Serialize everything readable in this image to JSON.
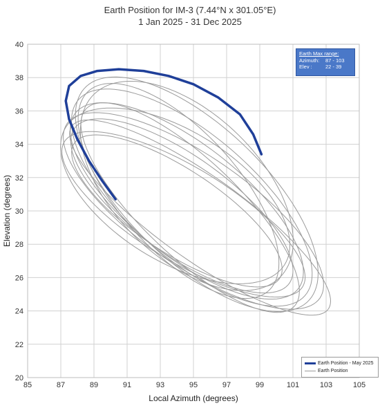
{
  "chart_data": {
    "type": "line",
    "title_line1": "Earth Position for IM-3 (7.44°N x 301.05°E)",
    "title_line2": "1 Jan 2025 - 31 Dec 2025",
    "xlabel": "Local Azimuth (degrees)",
    "ylabel": "Elevation (degrees)",
    "xlim": [
      85,
      105
    ],
    "ylim": [
      20,
      40
    ],
    "xticks": [
      "85",
      "87",
      "89",
      "91",
      "93",
      "95",
      "97",
      "99",
      "101",
      "103",
      "105"
    ],
    "yticks": [
      "20",
      "22",
      "24",
      "26",
      "28",
      "30",
      "32",
      "34",
      "36",
      "38",
      "40"
    ],
    "grid": true,
    "legend_placement": "bottom-right",
    "info_box": {
      "header": "Earth Max range:",
      "azimuth_label": "Azimuth:",
      "azimuth_value": "87 - 103",
      "elev_label": "Elev :",
      "elev_value": "22 - 39"
    },
    "series": [
      {
        "name": "Earth Position - May 2025",
        "color": "#1f3f99",
        "x": [
          90.3,
          89.5,
          88.7,
          88.0,
          87.5,
          87.3,
          87.5,
          88.2,
          89.2,
          90.5,
          92.0,
          93.5,
          95.0,
          96.5,
          97.8,
          98.6,
          99.1
        ],
        "y": [
          30.7,
          31.8,
          33.0,
          34.3,
          35.5,
          36.6,
          37.5,
          38.1,
          38.4,
          38.5,
          38.4,
          38.1,
          37.6,
          36.8,
          35.8,
          34.6,
          33.4
        ]
      },
      {
        "name": "Earth Position",
        "color": "#9a9a9a",
        "loops": [
          {
            "cx": 94.0,
            "cy": 30.0,
            "a": 7.6,
            "b": 3.0,
            "rot": -34
          },
          {
            "cx": 94.3,
            "cy": 30.3,
            "a": 8.2,
            "b": 3.6,
            "rot": -36
          },
          {
            "cx": 94.6,
            "cy": 30.6,
            "a": 8.8,
            "b": 4.2,
            "rot": -38
          },
          {
            "cx": 94.9,
            "cy": 30.8,
            "a": 9.3,
            "b": 4.8,
            "rot": -40
          },
          {
            "cx": 95.2,
            "cy": 31.0,
            "a": 9.6,
            "b": 5.4,
            "rot": -42
          },
          {
            "cx": 94.4,
            "cy": 29.8,
            "a": 8.6,
            "b": 3.3,
            "rot": -32
          },
          {
            "cx": 94.8,
            "cy": 30.2,
            "a": 9.0,
            "b": 3.9,
            "rot": -44
          },
          {
            "cx": 93.9,
            "cy": 30.9,
            "a": 7.9,
            "b": 4.5,
            "rot": -30
          },
          {
            "cx": 95.4,
            "cy": 29.6,
            "a": 9.8,
            "b": 3.1,
            "rot": -37
          },
          {
            "cx": 94.1,
            "cy": 31.2,
            "a": 8.4,
            "b": 5.0,
            "rot": -46
          },
          {
            "cx": 95.0,
            "cy": 30.0,
            "a": 9.5,
            "b": 4.0,
            "rot": -35
          },
          {
            "cx": 94.6,
            "cy": 31.5,
            "a": 8.0,
            "b": 5.6,
            "rot": -39
          }
        ]
      }
    ]
  }
}
